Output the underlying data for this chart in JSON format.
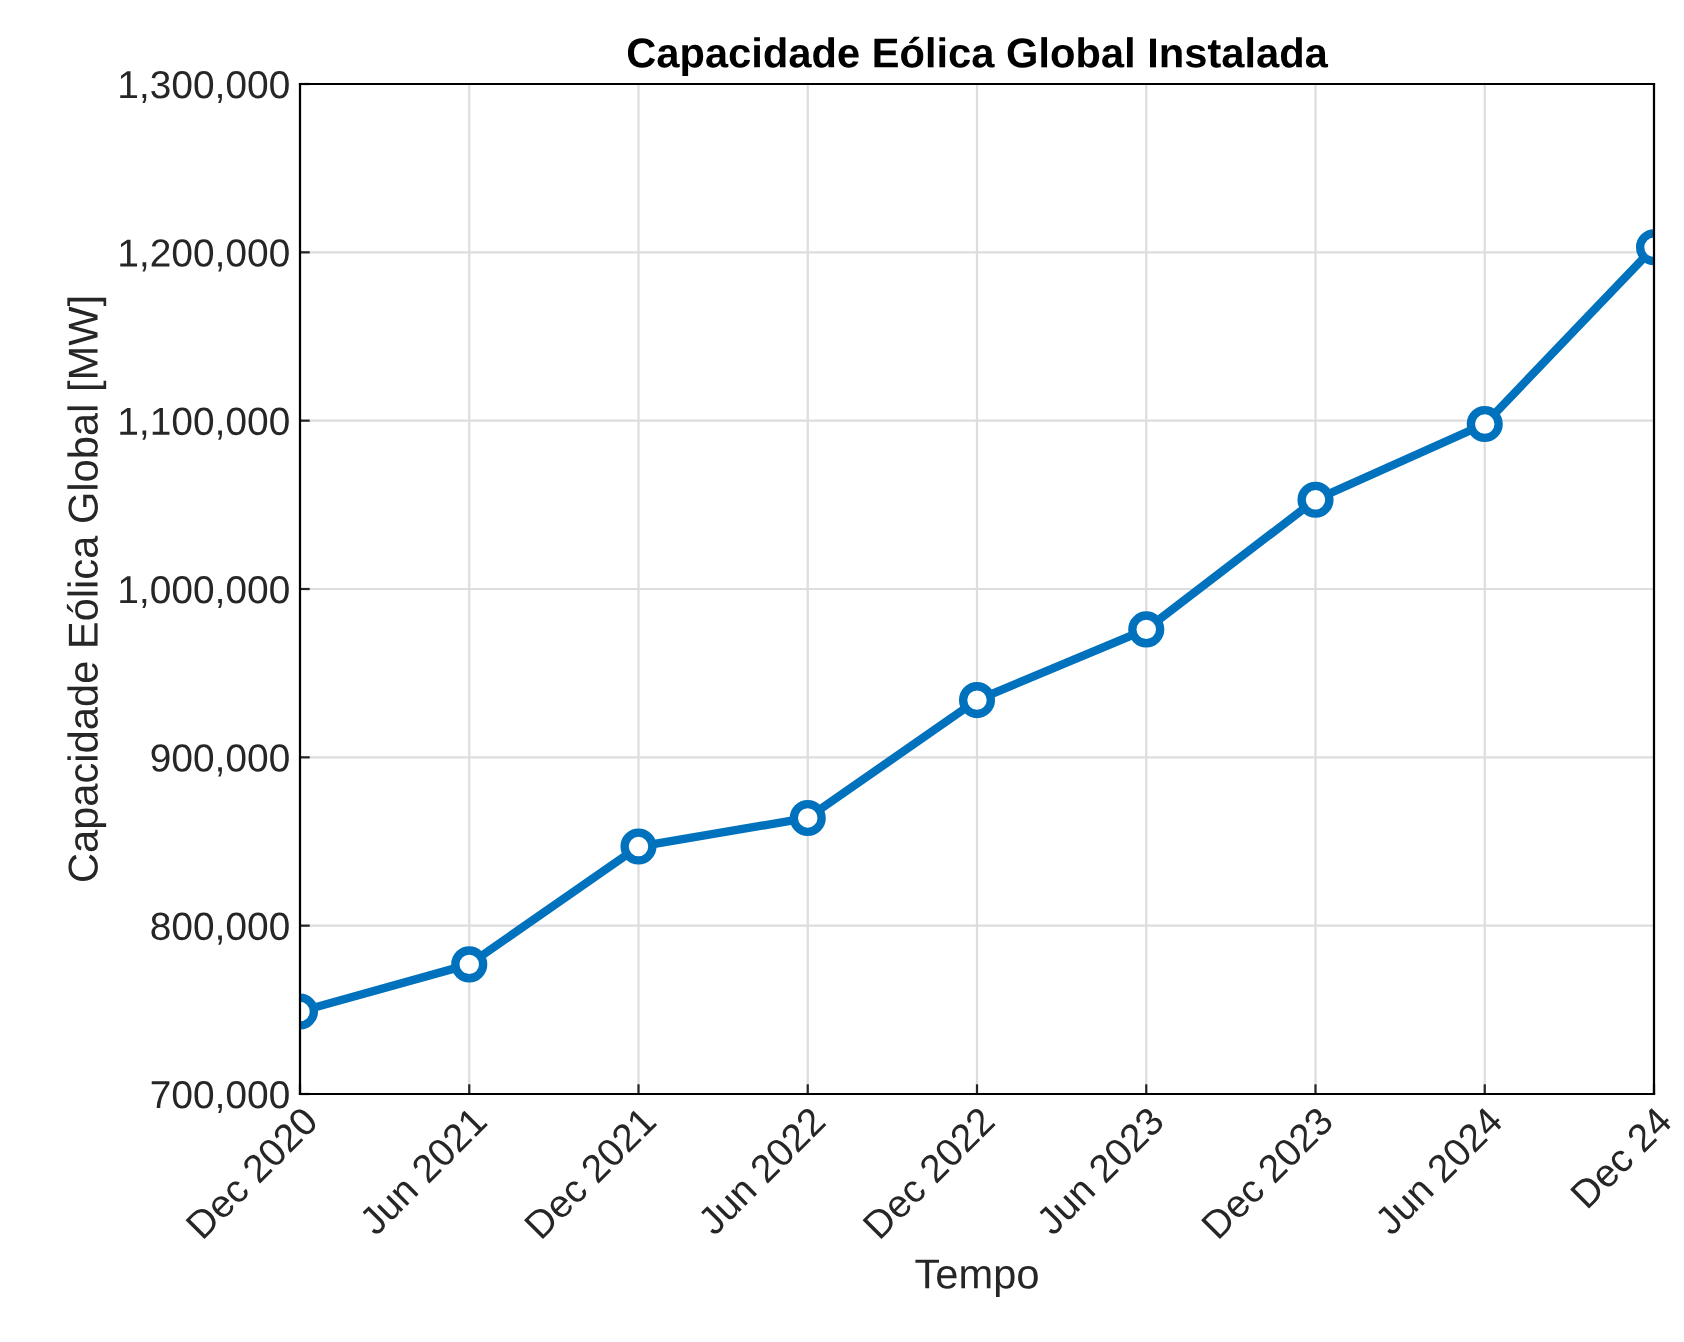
{
  "chart_data": {
    "type": "line",
    "title": "Capacidade Eólica Global Instalada",
    "xlabel": "Tempo",
    "ylabel": "Capacidade Eólica Global [MW]",
    "categories": [
      "Dec 2020",
      "Jun 2021",
      "Dec 2021",
      "Jun 2022",
      "Dec 2022",
      "Jun 2023",
      "Dec 2023",
      "Jun 2024",
      "Dec 24"
    ],
    "series": [
      {
        "color": "#0072bd",
        "values": [
          749000,
          777000,
          847000,
          864000,
          934000,
          976000,
          1053000,
          1098000,
          1203000
        ]
      }
    ],
    "ylim": [
      700000,
      1300000
    ],
    "yticks": [
      {
        "value": 700000,
        "label": "700,000"
      },
      {
        "value": 800000,
        "label": "800,000"
      },
      {
        "value": 900000,
        "label": "900,000"
      },
      {
        "value": 1000000,
        "label": "1,000,000"
      },
      {
        "value": 1100000,
        "label": "1,100,000"
      },
      {
        "value": 1200000,
        "label": "1,200,000"
      },
      {
        "value": 1300000,
        "label": "1,300,000"
      }
    ],
    "grid": true,
    "marker": "circle",
    "line_style": "solid"
  }
}
